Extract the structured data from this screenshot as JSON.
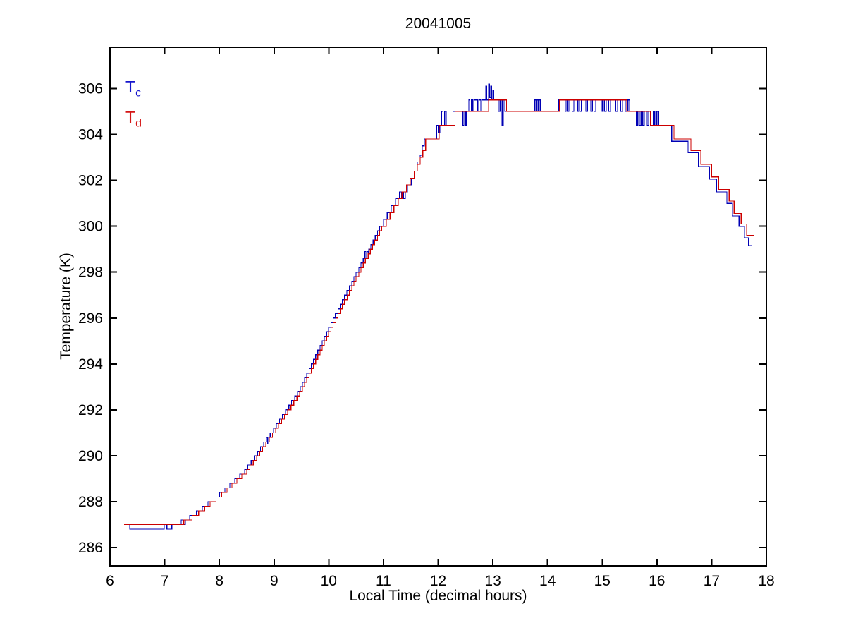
{
  "title": "20041005",
  "chart_data": {
    "type": "line",
    "title": "20041005",
    "xlabel": "Local Time (decimal hours)",
    "ylabel": "Temperature (K)",
    "xlim": [
      6,
      18
    ],
    "ylim": [
      285.2,
      307.8
    ],
    "xticks": [
      6,
      7,
      8,
      9,
      10,
      11,
      12,
      13,
      14,
      15,
      16,
      17,
      18
    ],
    "yticks": [
      286,
      288,
      290,
      292,
      294,
      296,
      298,
      300,
      302,
      304,
      306
    ],
    "grid": false,
    "legend_position": "top-left-inside",
    "axis_color": "#000000",
    "background": "#ffffff",
    "series": [
      {
        "name": "Tc",
        "label": "T",
        "sub": "c",
        "color": "#0000B4",
        "legend_color": "#1515CC",
        "style": "step",
        "points": [
          [
            6.26,
            287.0
          ],
          [
            6.36,
            286.8
          ],
          [
            6.99,
            287.0
          ],
          [
            7.04,
            286.8
          ],
          [
            7.13,
            287.0
          ],
          [
            7.3,
            287.2
          ],
          [
            7.34,
            287.0
          ],
          [
            7.38,
            287.2
          ],
          [
            7.46,
            287.4
          ],
          [
            7.58,
            287.6
          ],
          [
            7.69,
            287.8
          ],
          [
            7.79,
            288.0
          ],
          [
            7.9,
            288.2
          ],
          [
            8.0,
            288.4
          ],
          [
            8.1,
            288.6
          ],
          [
            8.19,
            288.8
          ],
          [
            8.28,
            289.0
          ],
          [
            8.37,
            289.2
          ],
          [
            8.46,
            289.4
          ],
          [
            8.52,
            289.6
          ],
          [
            8.58,
            289.8
          ],
          [
            8.64,
            290.0
          ],
          [
            8.7,
            290.2
          ],
          [
            8.75,
            290.4
          ],
          [
            8.81,
            290.6
          ],
          [
            8.86,
            290.8
          ],
          [
            8.88,
            290.5
          ],
          [
            8.9,
            290.8
          ],
          [
            8.93,
            291.0
          ],
          [
            8.99,
            291.2
          ],
          [
            9.04,
            291.4
          ],
          [
            9.1,
            291.6
          ],
          [
            9.15,
            291.8
          ],
          [
            9.21,
            292.0
          ],
          [
            9.27,
            292.2
          ],
          [
            9.32,
            292.4
          ],
          [
            9.38,
            292.6
          ],
          [
            9.43,
            292.8
          ],
          [
            9.48,
            293.0
          ],
          [
            9.52,
            293.2
          ],
          [
            9.56,
            293.4
          ],
          [
            9.6,
            293.6
          ],
          [
            9.64,
            293.8
          ],
          [
            9.68,
            294.0
          ],
          [
            9.72,
            294.2
          ],
          [
            9.76,
            294.4
          ],
          [
            9.8,
            294.6
          ],
          [
            9.84,
            294.8
          ],
          [
            9.88,
            295.0
          ],
          [
            9.92,
            295.2
          ],
          [
            9.96,
            295.4
          ],
          [
            10.0,
            295.6
          ],
          [
            10.04,
            295.8
          ],
          [
            10.08,
            296.0
          ],
          [
            10.12,
            296.2
          ],
          [
            10.17,
            296.4
          ],
          [
            10.21,
            296.6
          ],
          [
            10.25,
            296.8
          ],
          [
            10.29,
            297.0
          ],
          [
            10.33,
            297.2
          ],
          [
            10.38,
            297.4
          ],
          [
            10.42,
            297.6
          ],
          [
            10.46,
            297.8
          ],
          [
            10.5,
            298.0
          ],
          [
            10.55,
            298.2
          ],
          [
            10.59,
            298.4
          ],
          [
            10.63,
            298.6
          ],
          [
            10.66,
            298.9
          ],
          [
            10.68,
            298.6
          ],
          [
            10.7,
            298.9
          ],
          [
            10.72,
            298.8
          ],
          [
            10.73,
            299.0
          ],
          [
            10.77,
            299.2
          ],
          [
            10.81,
            299.4
          ],
          [
            10.85,
            299.6
          ],
          [
            10.89,
            299.8
          ],
          [
            10.93,
            300.0
          ],
          [
            11.0,
            300.3
          ],
          [
            11.07,
            300.6
          ],
          [
            11.14,
            300.9
          ],
          [
            11.22,
            301.2
          ],
          [
            11.29,
            301.5
          ],
          [
            11.33,
            301.2
          ],
          [
            11.35,
            301.5
          ],
          [
            11.37,
            301.2
          ],
          [
            11.4,
            301.5
          ],
          [
            11.44,
            301.8
          ],
          [
            11.51,
            302.1
          ],
          [
            11.57,
            302.4
          ],
          [
            11.62,
            302.8
          ],
          [
            11.67,
            303.1
          ],
          [
            11.71,
            303.5
          ],
          [
            11.75,
            303.8
          ],
          [
            11.97,
            304.4
          ],
          [
            12.0,
            304.1
          ],
          [
            12.03,
            304.4
          ],
          [
            12.06,
            305.0
          ],
          [
            12.09,
            304.4
          ],
          [
            12.12,
            305.0
          ],
          [
            12.15,
            304.4
          ],
          [
            12.27,
            305.0
          ],
          [
            12.45,
            304.4
          ],
          [
            12.47,
            305.0
          ],
          [
            12.5,
            304.4
          ],
          [
            12.52,
            305.0
          ],
          [
            12.56,
            305.5
          ],
          [
            12.58,
            305.0
          ],
          [
            12.61,
            305.5
          ],
          [
            12.63,
            305.0
          ],
          [
            12.65,
            305.5
          ],
          [
            12.72,
            305.0
          ],
          [
            12.74,
            305.5
          ],
          [
            12.78,
            305.0
          ],
          [
            12.8,
            305.5
          ],
          [
            12.87,
            306.1
          ],
          [
            12.89,
            305.5
          ],
          [
            12.92,
            306.2
          ],
          [
            12.94,
            305.6
          ],
          [
            12.96,
            306.1
          ],
          [
            12.98,
            305.5
          ],
          [
            13.0,
            305.9
          ],
          [
            13.02,
            305.5
          ],
          [
            13.1,
            305.0
          ],
          [
            13.13,
            305.5
          ],
          [
            13.17,
            304.4
          ],
          [
            13.19,
            305.5
          ],
          [
            13.22,
            305.0
          ],
          [
            13.26,
            305.0
          ],
          [
            13.77,
            305.5
          ],
          [
            13.79,
            305.0
          ],
          [
            13.81,
            305.5
          ],
          [
            13.83,
            305.0
          ],
          [
            13.85,
            305.5
          ],
          [
            13.87,
            305.0
          ],
          [
            14.2,
            305.5
          ],
          [
            14.32,
            305.0
          ],
          [
            14.34,
            305.5
          ],
          [
            14.36,
            305.0
          ],
          [
            14.39,
            305.5
          ],
          [
            14.45,
            305.0
          ],
          [
            14.48,
            305.5
          ],
          [
            14.55,
            305.0
          ],
          [
            14.57,
            305.5
          ],
          [
            14.59,
            305.0
          ],
          [
            14.62,
            305.5
          ],
          [
            14.7,
            305.0
          ],
          [
            14.73,
            305.5
          ],
          [
            14.79,
            305.0
          ],
          [
            14.82,
            305.5
          ],
          [
            14.85,
            305.0
          ],
          [
            14.88,
            305.5
          ],
          [
            15.0,
            305.0
          ],
          [
            15.02,
            305.5
          ],
          [
            15.04,
            305.0
          ],
          [
            15.07,
            305.5
          ],
          [
            15.12,
            305.0
          ],
          [
            15.15,
            305.5
          ],
          [
            15.25,
            305.0
          ],
          [
            15.28,
            305.5
          ],
          [
            15.34,
            305.0
          ],
          [
            15.37,
            305.5
          ],
          [
            15.42,
            305.0
          ],
          [
            15.47,
            305.5
          ],
          [
            15.5,
            305.0
          ],
          [
            15.62,
            304.4
          ],
          [
            15.65,
            305.0
          ],
          [
            15.68,
            304.4
          ],
          [
            15.71,
            305.0
          ],
          [
            15.74,
            304.4
          ],
          [
            15.77,
            305.0
          ],
          [
            15.82,
            304.4
          ],
          [
            15.85,
            305.0
          ],
          [
            15.88,
            304.4
          ],
          [
            15.93,
            305.0
          ],
          [
            15.96,
            304.4
          ],
          [
            16.0,
            305.0
          ],
          [
            16.03,
            304.4
          ],
          [
            16.27,
            303.7
          ],
          [
            16.57,
            303.2
          ],
          [
            16.76,
            302.6
          ],
          [
            16.96,
            302.05
          ],
          [
            17.09,
            301.5
          ],
          [
            17.28,
            301.0
          ],
          [
            17.38,
            300.45
          ],
          [
            17.5,
            300.0
          ],
          [
            17.6,
            299.5
          ],
          [
            17.67,
            299.15
          ],
          [
            17.73,
            299.15
          ]
        ]
      },
      {
        "name": "Td",
        "label": "T",
        "sub": "d",
        "color": "#CC0000",
        "legend_color": "#D41515",
        "style": "step",
        "points": [
          [
            6.26,
            287.0
          ],
          [
            7.35,
            287.2
          ],
          [
            7.5,
            287.4
          ],
          [
            7.62,
            287.6
          ],
          [
            7.73,
            287.8
          ],
          [
            7.83,
            288.0
          ],
          [
            7.94,
            288.2
          ],
          [
            8.04,
            288.4
          ],
          [
            8.14,
            288.6
          ],
          [
            8.23,
            288.8
          ],
          [
            8.32,
            289.0
          ],
          [
            8.41,
            289.2
          ],
          [
            8.5,
            289.4
          ],
          [
            8.56,
            289.6
          ],
          [
            8.62,
            289.8
          ],
          [
            8.68,
            290.0
          ],
          [
            8.74,
            290.2
          ],
          [
            8.79,
            290.4
          ],
          [
            8.85,
            290.6
          ],
          [
            8.91,
            290.8
          ],
          [
            8.97,
            291.0
          ],
          [
            9.03,
            291.2
          ],
          [
            9.08,
            291.4
          ],
          [
            9.14,
            291.6
          ],
          [
            9.19,
            291.8
          ],
          [
            9.25,
            292.0
          ],
          [
            9.31,
            292.2
          ],
          [
            9.36,
            292.4
          ],
          [
            9.42,
            292.6
          ],
          [
            9.47,
            292.8
          ],
          [
            9.52,
            293.0
          ],
          [
            9.56,
            293.2
          ],
          [
            9.6,
            293.4
          ],
          [
            9.64,
            293.6
          ],
          [
            9.68,
            293.8
          ],
          [
            9.72,
            294.0
          ],
          [
            9.76,
            294.2
          ],
          [
            9.8,
            294.4
          ],
          [
            9.84,
            294.6
          ],
          [
            9.88,
            294.8
          ],
          [
            9.92,
            295.0
          ],
          [
            9.96,
            295.2
          ],
          [
            10.0,
            295.4
          ],
          [
            10.04,
            295.6
          ],
          [
            10.08,
            295.8
          ],
          [
            10.13,
            296.0
          ],
          [
            10.17,
            296.2
          ],
          [
            10.21,
            296.4
          ],
          [
            10.25,
            296.6
          ],
          [
            10.29,
            296.8
          ],
          [
            10.34,
            297.0
          ],
          [
            10.38,
            297.2
          ],
          [
            10.42,
            297.4
          ],
          [
            10.46,
            297.6
          ],
          [
            10.5,
            297.8
          ],
          [
            10.55,
            298.0
          ],
          [
            10.59,
            298.2
          ],
          [
            10.63,
            298.4
          ],
          [
            10.67,
            298.6
          ],
          [
            10.72,
            298.8
          ],
          [
            10.76,
            299.0
          ],
          [
            10.8,
            299.2
          ],
          [
            10.84,
            299.4
          ],
          [
            10.89,
            299.6
          ],
          [
            10.93,
            299.8
          ],
          [
            10.97,
            300.0
          ],
          [
            11.05,
            300.3
          ],
          [
            11.12,
            300.6
          ],
          [
            11.19,
            300.9
          ],
          [
            11.27,
            301.2
          ],
          [
            11.34,
            301.5
          ],
          [
            11.42,
            301.8
          ],
          [
            11.49,
            302.1
          ],
          [
            11.56,
            302.4
          ],
          [
            11.62,
            302.7
          ],
          [
            11.67,
            303.0
          ],
          [
            11.72,
            303.3
          ],
          [
            11.77,
            303.8
          ],
          [
            12.02,
            304.4
          ],
          [
            12.31,
            305.0
          ],
          [
            12.92,
            305.5
          ],
          [
            13.25,
            305.0
          ],
          [
            14.22,
            305.5
          ],
          [
            15.45,
            305.0
          ],
          [
            15.88,
            304.4
          ],
          [
            16.31,
            303.8
          ],
          [
            16.62,
            303.3
          ],
          [
            16.8,
            302.7
          ],
          [
            17.0,
            302.15
          ],
          [
            17.13,
            301.6
          ],
          [
            17.32,
            301.1
          ],
          [
            17.41,
            300.55
          ],
          [
            17.54,
            300.1
          ],
          [
            17.64,
            299.6
          ],
          [
            17.78,
            299.6
          ]
        ]
      }
    ]
  }
}
